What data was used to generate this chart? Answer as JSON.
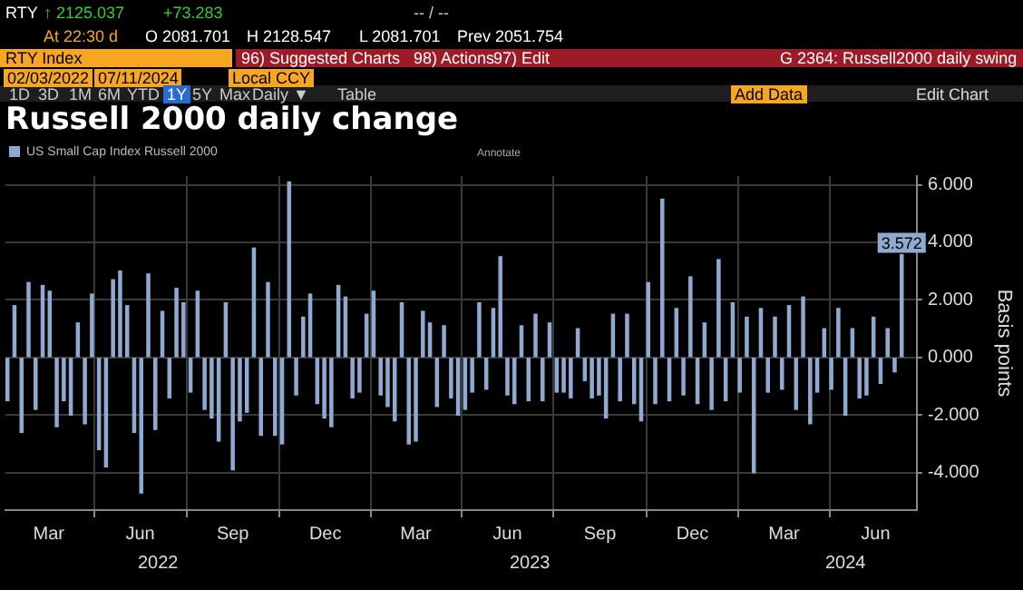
{
  "chart_data": {
    "type": "bar",
    "title": "Russell 2000 daily change",
    "ylabel": "Basis points",
    "annotations": [
      "RTY",
      "↑ 2125.037",
      "+73.283",
      "-- / --",
      "At 22:30 d",
      "O 2081.701",
      "H 2128.547",
      "L 2081.701",
      "Prev 2051.754",
      "RTY Index",
      "96) Suggested Charts",
      "98) Actions",
      "97) Edit",
      "G 2364: Russell2000 daily swing",
      "02/03/2022",
      "07/11/2024",
      "Local CCY",
      "1D",
      "3D",
      "1M",
      "6M",
      "YTD",
      "1Y",
      "5Y",
      "Max",
      "Daily ▼",
      "Table",
      "Add Data",
      "Edit Chart",
      "Annotate",
      "2022",
      "2023",
      "2024"
    ],
    "x": [
      "2022-02-03",
      "2022-02-10",
      "2022-02-17",
      "2022-02-24",
      "2022-03-03",
      "2022-03-10",
      "2022-03-17",
      "2022-03-24",
      "2022-03-31",
      "2022-04-07",
      "2022-04-14",
      "2022-04-21",
      "2022-04-28",
      "2022-05-05",
      "2022-05-12",
      "2022-05-19",
      "2022-05-26",
      "2022-06-02",
      "2022-06-09",
      "2022-06-16",
      "2022-06-23",
      "2022-06-30",
      "2022-07-07",
      "2022-07-14",
      "2022-07-21",
      "2022-07-28",
      "2022-08-04",
      "2022-08-11",
      "2022-08-18",
      "2022-08-25",
      "2022-09-01",
      "2022-09-08",
      "2022-09-15",
      "2022-09-22",
      "2022-09-29",
      "2022-10-06",
      "2022-10-13",
      "2022-10-20",
      "2022-10-27",
      "2022-11-03",
      "2022-11-10",
      "2022-11-17",
      "2022-11-24",
      "2022-12-01",
      "2022-12-08",
      "2022-12-15",
      "2022-12-22",
      "2022-12-29",
      "2023-01-05",
      "2023-01-12",
      "2023-01-19",
      "2023-01-26",
      "2023-02-02",
      "2023-02-09",
      "2023-02-16",
      "2023-02-23",
      "2023-03-02",
      "2023-03-09",
      "2023-03-16",
      "2023-03-23",
      "2023-03-30",
      "2023-04-06",
      "2023-04-13",
      "2023-04-20",
      "2023-04-27",
      "2023-05-04",
      "2023-05-11",
      "2023-05-18",
      "2023-05-25",
      "2023-06-01",
      "2023-06-08",
      "2023-06-15",
      "2023-06-22",
      "2023-06-29",
      "2023-07-06",
      "2023-07-13",
      "2023-07-20",
      "2023-07-27",
      "2023-08-03",
      "2023-08-10",
      "2023-08-17",
      "2023-08-24",
      "2023-08-31",
      "2023-09-07",
      "2023-09-14",
      "2023-09-21",
      "2023-09-28",
      "2023-10-05",
      "2023-10-12",
      "2023-10-19",
      "2023-10-26",
      "2023-11-02",
      "2023-11-09",
      "2023-11-16",
      "2023-11-23",
      "2023-11-30",
      "2023-12-07",
      "2023-12-14",
      "2023-12-21",
      "2023-12-28",
      "2024-01-04",
      "2024-01-11",
      "2024-01-18",
      "2024-01-25",
      "2024-02-01",
      "2024-02-08",
      "2024-02-15",
      "2024-02-22",
      "2024-02-29",
      "2024-03-07",
      "2024-03-14",
      "2024-03-21",
      "2024-03-28",
      "2024-04-04",
      "2024-04-11",
      "2024-04-18",
      "2024-04-25",
      "2024-05-02",
      "2024-05-09",
      "2024-05-16",
      "2024-05-23",
      "2024-05-30",
      "2024-06-06",
      "2024-06-13",
      "2024-06-20",
      "2024-06-27",
      "2024-07-04",
      "2024-07-11"
    ],
    "series": [
      {
        "name": "US Small Cap Index Russell 2000",
        "color": "#8fa9d1",
        "values": [
          -1.5,
          1.8,
          -2.6,
          2.6,
          -1.8,
          2.5,
          2.3,
          -2.4,
          -1.5,
          -2.0,
          1.2,
          -2.3,
          2.2,
          -3.2,
          -3.8,
          2.7,
          3.0,
          1.8,
          -2.6,
          -4.7,
          2.9,
          -2.5,
          1.6,
          -1.4,
          2.4,
          1.9,
          -1.2,
          2.3,
          -1.8,
          -2.1,
          -2.9,
          1.9,
          -3.9,
          -2.2,
          -1.9,
          3.8,
          -2.7,
          2.6,
          -2.7,
          -3.0,
          6.1,
          -1.3,
          1.4,
          2.2,
          -1.6,
          -2.1,
          -2.4,
          2.5,
          2.1,
          -1.4,
          -1.2,
          1.5,
          2.3,
          -1.3,
          -1.7,
          -2.2,
          1.9,
          -3.0,
          -2.9,
          1.6,
          1.2,
          -1.7,
          1.1,
          -1.4,
          -2.0,
          -1.8,
          -1.2,
          1.9,
          -1.1,
          1.7,
          3.5,
          -1.3,
          -1.6,
          1.1,
          -1.5,
          1.5,
          -1.5,
          1.2,
          -1.2,
          -1.2,
          -1.4,
          1.0,
          -0.8,
          -1.4,
          -1.3,
          -2.1,
          1.5,
          -1.5,
          1.5,
          -1.6,
          -2.2,
          2.6,
          -1.6,
          5.5,
          -1.5,
          1.7,
          -1.3,
          2.8,
          -1.6,
          1.2,
          -1.8,
          3.4,
          -1.5,
          1.9,
          -1.2,
          1.4,
          -4.0,
          1.7,
          -1.2,
          1.4,
          -1.1,
          1.8,
          -1.8,
          2.1,
          -2.3,
          -1.2,
          1.0,
          -1.1,
          1.7,
          -2.0,
          1.0,
          -1.4,
          -1.3,
          1.4,
          -0.9,
          1.0,
          -0.5,
          3.572
        ],
        "value_labels": [
          null,
          null,
          null,
          null,
          null,
          null,
          null,
          null,
          null,
          null,
          null,
          null,
          null,
          null,
          null,
          null,
          null,
          null,
          null,
          null,
          null,
          null,
          null,
          null,
          null,
          null,
          null,
          null,
          null,
          null,
          null,
          null,
          null,
          null,
          null,
          null,
          null,
          null,
          null,
          null,
          null,
          null,
          null,
          null,
          null,
          null,
          null,
          null,
          null,
          null,
          null,
          null,
          null,
          null,
          null,
          null,
          null,
          null,
          null,
          null,
          null,
          null,
          null,
          null,
          null,
          null,
          null,
          null,
          null,
          null,
          null,
          null,
          null,
          null,
          null,
          null,
          null,
          null,
          null,
          null,
          null,
          null,
          null,
          null,
          null,
          null,
          null,
          null,
          null,
          null,
          null,
          null,
          null,
          null,
          null,
          null,
          null,
          null,
          null,
          null,
          null,
          null,
          null,
          null,
          null,
          null,
          null,
          null,
          null,
          null,
          null,
          null,
          null,
          null,
          null,
          null,
          null,
          null,
          null,
          null,
          null,
          null,
          null,
          null,
          null,
          null,
          null,
          "3.572"
        ]
      }
    ],
    "xlim": [
      "2022-02-01",
      "2024-07-26"
    ],
    "xticks": [
      {
        "value": "2022-03-16",
        "label": "Mar"
      },
      {
        "value": "2022-06-15",
        "label": "Jun"
      },
      {
        "value": "2022-09-15",
        "label": "Sep"
      },
      {
        "value": "2022-12-16",
        "label": "Dec"
      },
      {
        "value": "2023-03-16",
        "label": "Mar"
      },
      {
        "value": "2023-06-15",
        "label": "Jun"
      },
      {
        "value": "2023-09-15",
        "label": "Sep"
      },
      {
        "value": "2023-12-16",
        "label": "Dec"
      },
      {
        "value": "2024-03-16",
        "label": "Mar"
      },
      {
        "value": "2024-06-15",
        "label": "Jun"
      }
    ],
    "ylim": [
      -5.3,
      6.3
    ],
    "yticks": [
      {
        "value": -4,
        "label": "-4.000"
      },
      {
        "value": -2,
        "label": "-2.000"
      },
      {
        "value": 0,
        "label": "0.000"
      },
      {
        "value": 2,
        "label": "2.000"
      },
      {
        "value": 4,
        "label": "4.000"
      },
      {
        "value": 6,
        "label": "6.000"
      }
    ],
    "grid": true,
    "legend": "top left"
  }
}
